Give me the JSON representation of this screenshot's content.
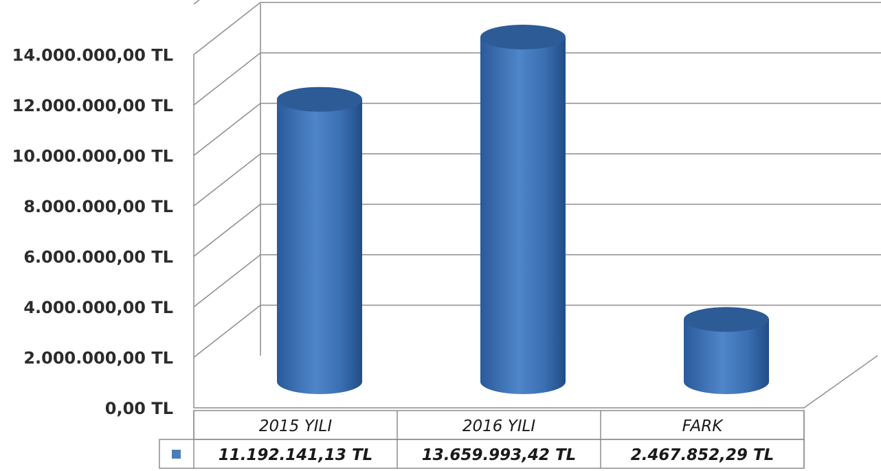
{
  "chart_data": {
    "type": "bar",
    "style": "3d-cylinder",
    "categories": [
      "2015 YILI",
      "2016 YILI",
      "FARK"
    ],
    "values": [
      11192141.13,
      13659993.42,
      2467852.29
    ],
    "value_labels": [
      "11.192.141,13 TL",
      "13.659.993,42 TL",
      "2.467.852,29 TL"
    ],
    "y_ticks": [
      0,
      2000000,
      4000000,
      6000000,
      8000000,
      10000000,
      12000000,
      14000000
    ],
    "y_tick_labels": [
      "0,00 TL",
      "2.000.000,00 TL",
      "4.000.000,00 TL",
      "6.000.000,00 TL",
      "8.000.000,00 TL",
      "10.000.000,00 TL",
      "12.000.000,00 TL",
      "14.000.000,00 TL"
    ],
    "ylim": [
      0,
      16000000
    ],
    "grid": true,
    "legend": "data-table",
    "series_color": "#4A7EBB",
    "title": "",
    "xlabel": "",
    "ylabel": ""
  }
}
